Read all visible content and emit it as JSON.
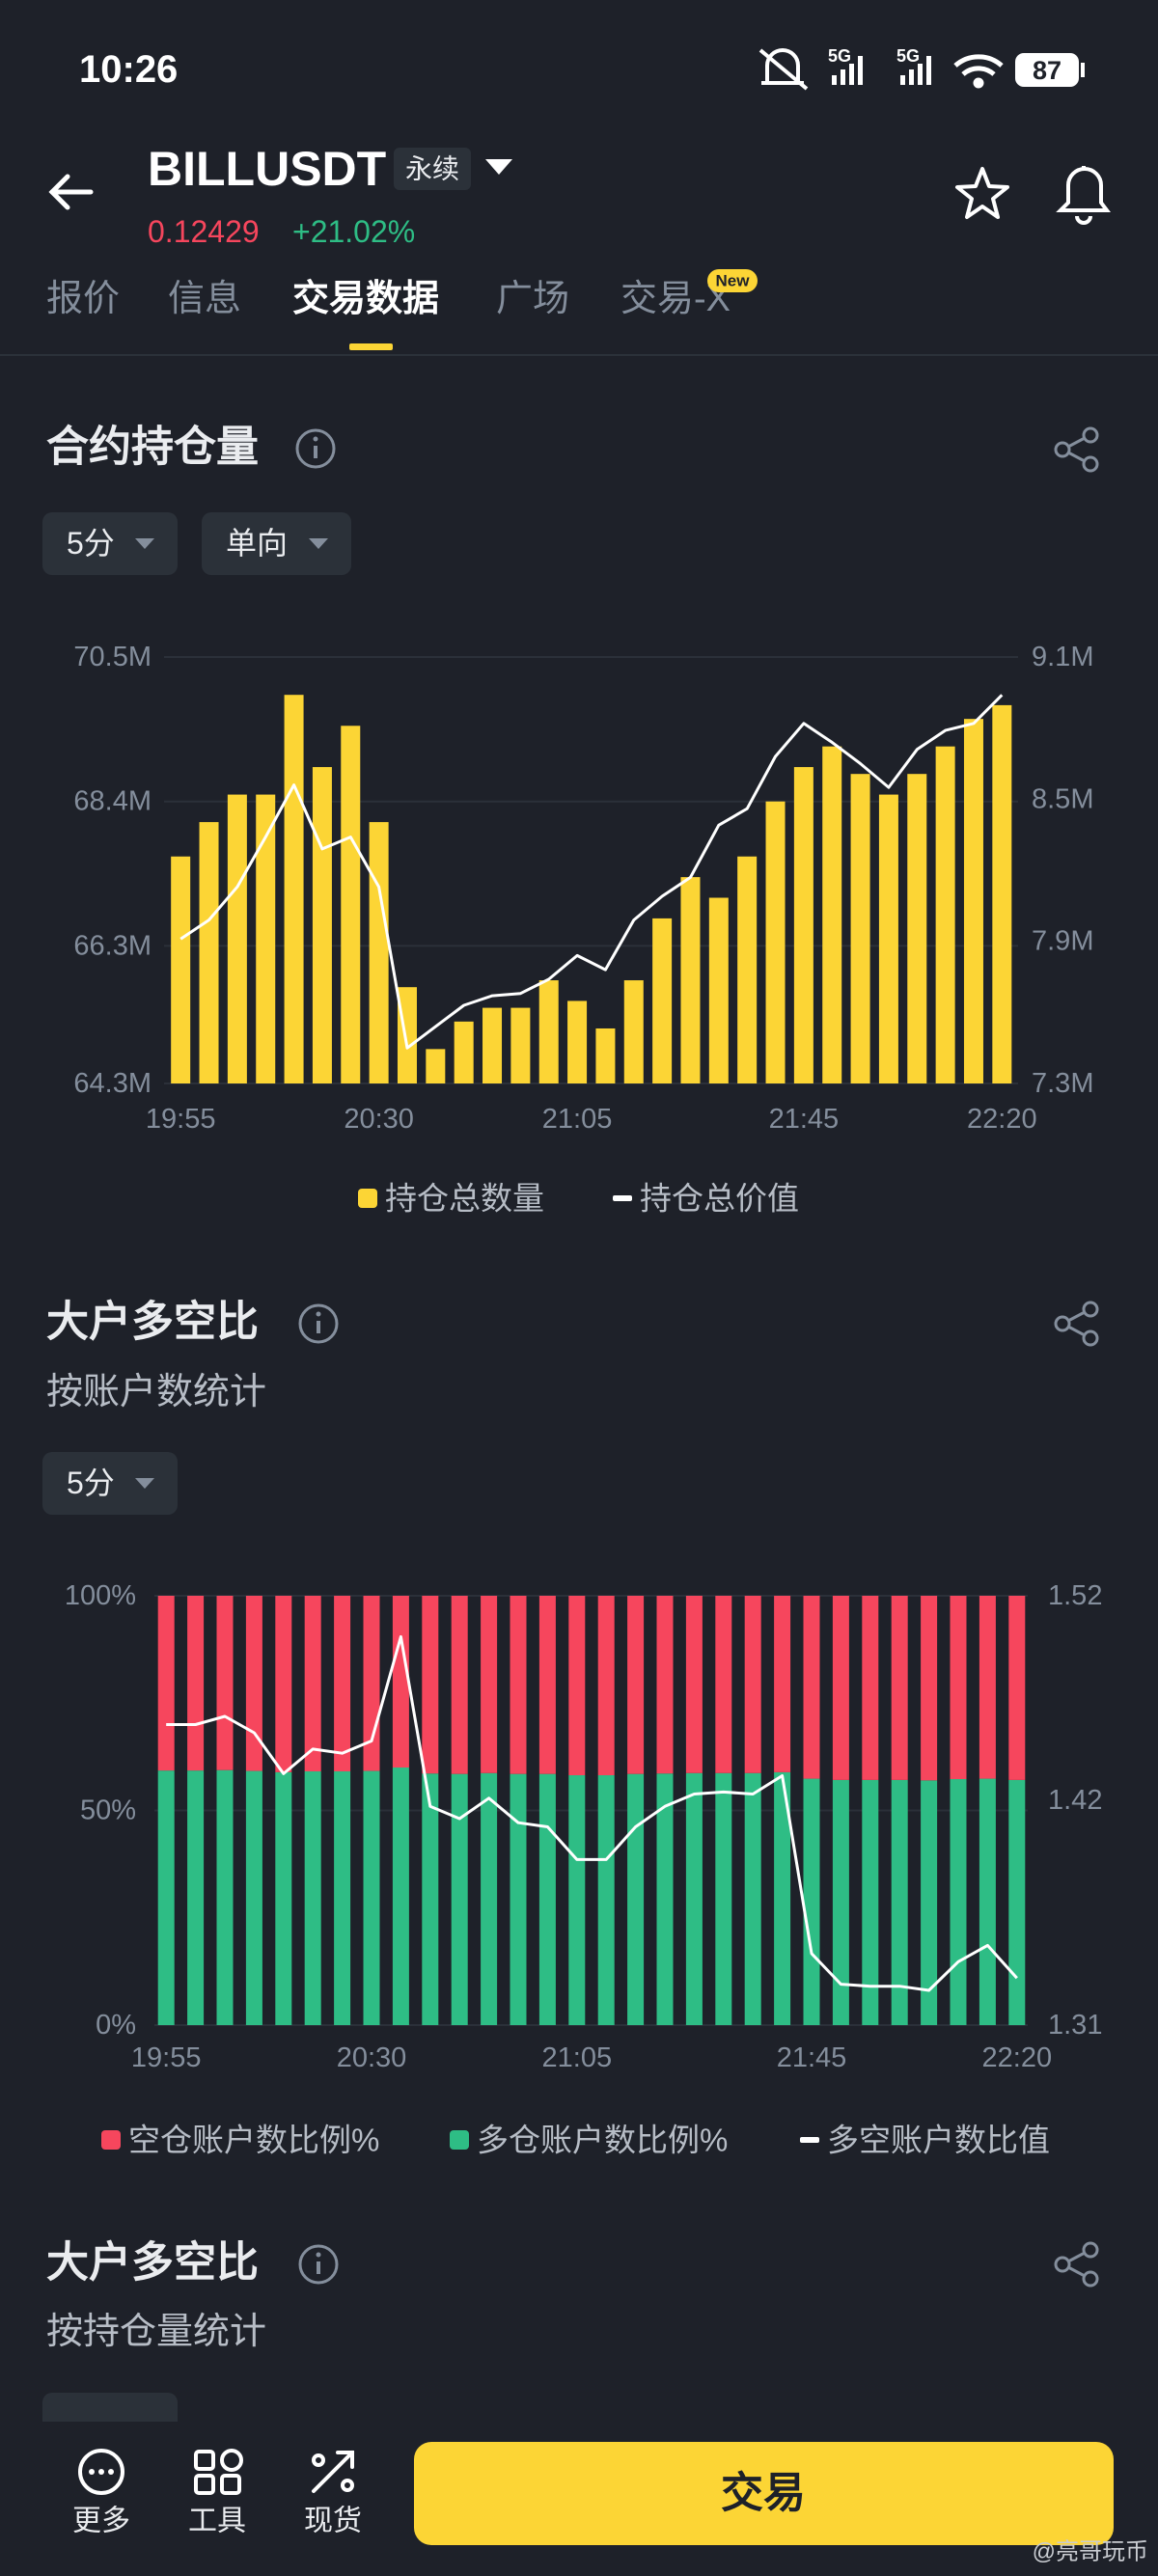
{
  "status_bar": {
    "time": "10:26",
    "network_1": "5G",
    "network_2": "5G",
    "battery": "87"
  },
  "header": {
    "symbol": "BILLUSDT",
    "tag": "永续",
    "price": "0.12429",
    "change": "+21.02%"
  },
  "tabs": {
    "items": [
      "报价",
      "信息",
      "交易数据",
      "广场",
      "交易-X"
    ],
    "badge": "New"
  },
  "chart_controls": [
    [
      "5分",
      "单向"
    ],
    [
      "5分"
    ]
  ],
  "chart_data": [
    {
      "type": "bar",
      "title": "合约持仓量",
      "categories": [
        "19:55",
        null,
        null,
        null,
        null,
        null,
        null,
        "20:30",
        null,
        null,
        null,
        null,
        null,
        null,
        "21:05",
        null,
        null,
        null,
        null,
        null,
        null,
        null,
        "21:45",
        null,
        null,
        null,
        null,
        null,
        null,
        "22:20"
      ],
      "series": [
        {
          "name": "持仓总数量",
          "type": "bar",
          "color": "#fcd535",
          "values": [
            67.6,
            68.1,
            68.5,
            68.5,
            69.95,
            68.9,
            69.5,
            68.1,
            65.7,
            64.8,
            65.2,
            65.4,
            65.4,
            65.8,
            65.5,
            65.1,
            65.8,
            66.7,
            67.3,
            67.0,
            67.6,
            68.4,
            68.9,
            69.2,
            68.8,
            68.5,
            68.8,
            69.2,
            69.6,
            69.8
          ]
        },
        {
          "name": "持仓总价值",
          "type": "line",
          "axis": "y2",
          "color": "#ffffff",
          "values": [
            7.91,
            7.99,
            8.13,
            8.34,
            8.56,
            8.29,
            8.34,
            8.13,
            7.45,
            7.54,
            7.63,
            7.67,
            7.68,
            7.74,
            7.84,
            7.78,
            7.99,
            8.09,
            8.17,
            8.39,
            8.46,
            8.68,
            8.82,
            8.74,
            8.65,
            8.55,
            8.71,
            8.79,
            8.82,
            8.94
          ]
        }
      ],
      "ylim": [
        64.3,
        70.5
      ],
      "yticks": [
        {
          "value": 64.3,
          "label": "64.3M"
        },
        {
          "value": 66.3,
          "label": "66.3M"
        },
        {
          "value": 68.4,
          "label": "68.4M"
        },
        {
          "value": 70.5,
          "label": "70.5M"
        }
      ],
      "y2lim": [
        7.3,
        9.1
      ],
      "y2ticks": [
        {
          "value": 7.3,
          "label": "7.3M"
        },
        {
          "value": 7.9,
          "label": "7.9M"
        },
        {
          "value": 8.5,
          "label": "8.5M"
        },
        {
          "value": 9.1,
          "label": "9.1M"
        }
      ],
      "grid": true
    },
    {
      "type": "bar",
      "title": "大户多空比",
      "subtitle": "按账户数统计",
      "stacked": true,
      "categories": [
        "19:55",
        null,
        null,
        null,
        null,
        null,
        null,
        "20:30",
        null,
        null,
        null,
        null,
        null,
        null,
        "21:05",
        null,
        null,
        null,
        null,
        null,
        null,
        null,
        "21:45",
        null,
        null,
        null,
        null,
        null,
        null,
        "22:20"
      ],
      "series": [
        {
          "name": "空仓账户数比例%",
          "type": "bar",
          "color": "#f6465d",
          "values": [
            40.7,
            40.7,
            40.6,
            40.8,
            41.1,
            40.9,
            40.9,
            40.8,
            40.0,
            41.4,
            41.5,
            41.3,
            41.5,
            41.5,
            41.8,
            41.8,
            41.5,
            41.4,
            41.3,
            41.3,
            41.3,
            41.1,
            42.6,
            42.9,
            42.9,
            42.9,
            43.0,
            42.7,
            42.6,
            42.9
          ]
        },
        {
          "name": "多仓账户数比例%",
          "type": "bar",
          "color": "#2ebd85",
          "values": [
            59.3,
            59.3,
            59.4,
            59.2,
            58.9,
            59.1,
            59.1,
            59.2,
            60.0,
            58.6,
            58.5,
            58.7,
            58.5,
            58.5,
            58.2,
            58.2,
            58.5,
            58.6,
            58.7,
            58.7,
            58.7,
            58.9,
            57.4,
            57.1,
            57.1,
            57.1,
            57.0,
            57.3,
            57.4,
            57.1
          ]
        },
        {
          "name": "多空账户数比值",
          "type": "line",
          "axis": "y2",
          "color": "#ffffff",
          "values": [
            1.457,
            1.457,
            1.461,
            1.453,
            1.433,
            1.445,
            1.443,
            1.449,
            1.5,
            1.417,
            1.411,
            1.421,
            1.409,
            1.407,
            1.391,
            1.391,
            1.407,
            1.417,
            1.423,
            1.424,
            1.423,
            1.432,
            1.345,
            1.33,
            1.329,
            1.329,
            1.327,
            1.341,
            1.349,
            1.333
          ]
        }
      ],
      "ylim": [
        0,
        100
      ],
      "yticks": [
        {
          "value": 0,
          "label": "0%"
        },
        {
          "value": 50,
          "label": "50%"
        },
        {
          "value": 100,
          "label": "100%"
        }
      ],
      "y2lim": [
        1.31,
        1.52
      ],
      "y2ticks": [
        1.31,
        1.42,
        1.52
      ],
      "grid": true
    }
  ],
  "section3": {
    "title": "大户多空比",
    "subtitle": "按持仓量统计"
  },
  "bottom_bar": {
    "items": [
      "更多",
      "工具",
      "现货"
    ],
    "button": "交易"
  },
  "watermark": "@亮哥玩币"
}
